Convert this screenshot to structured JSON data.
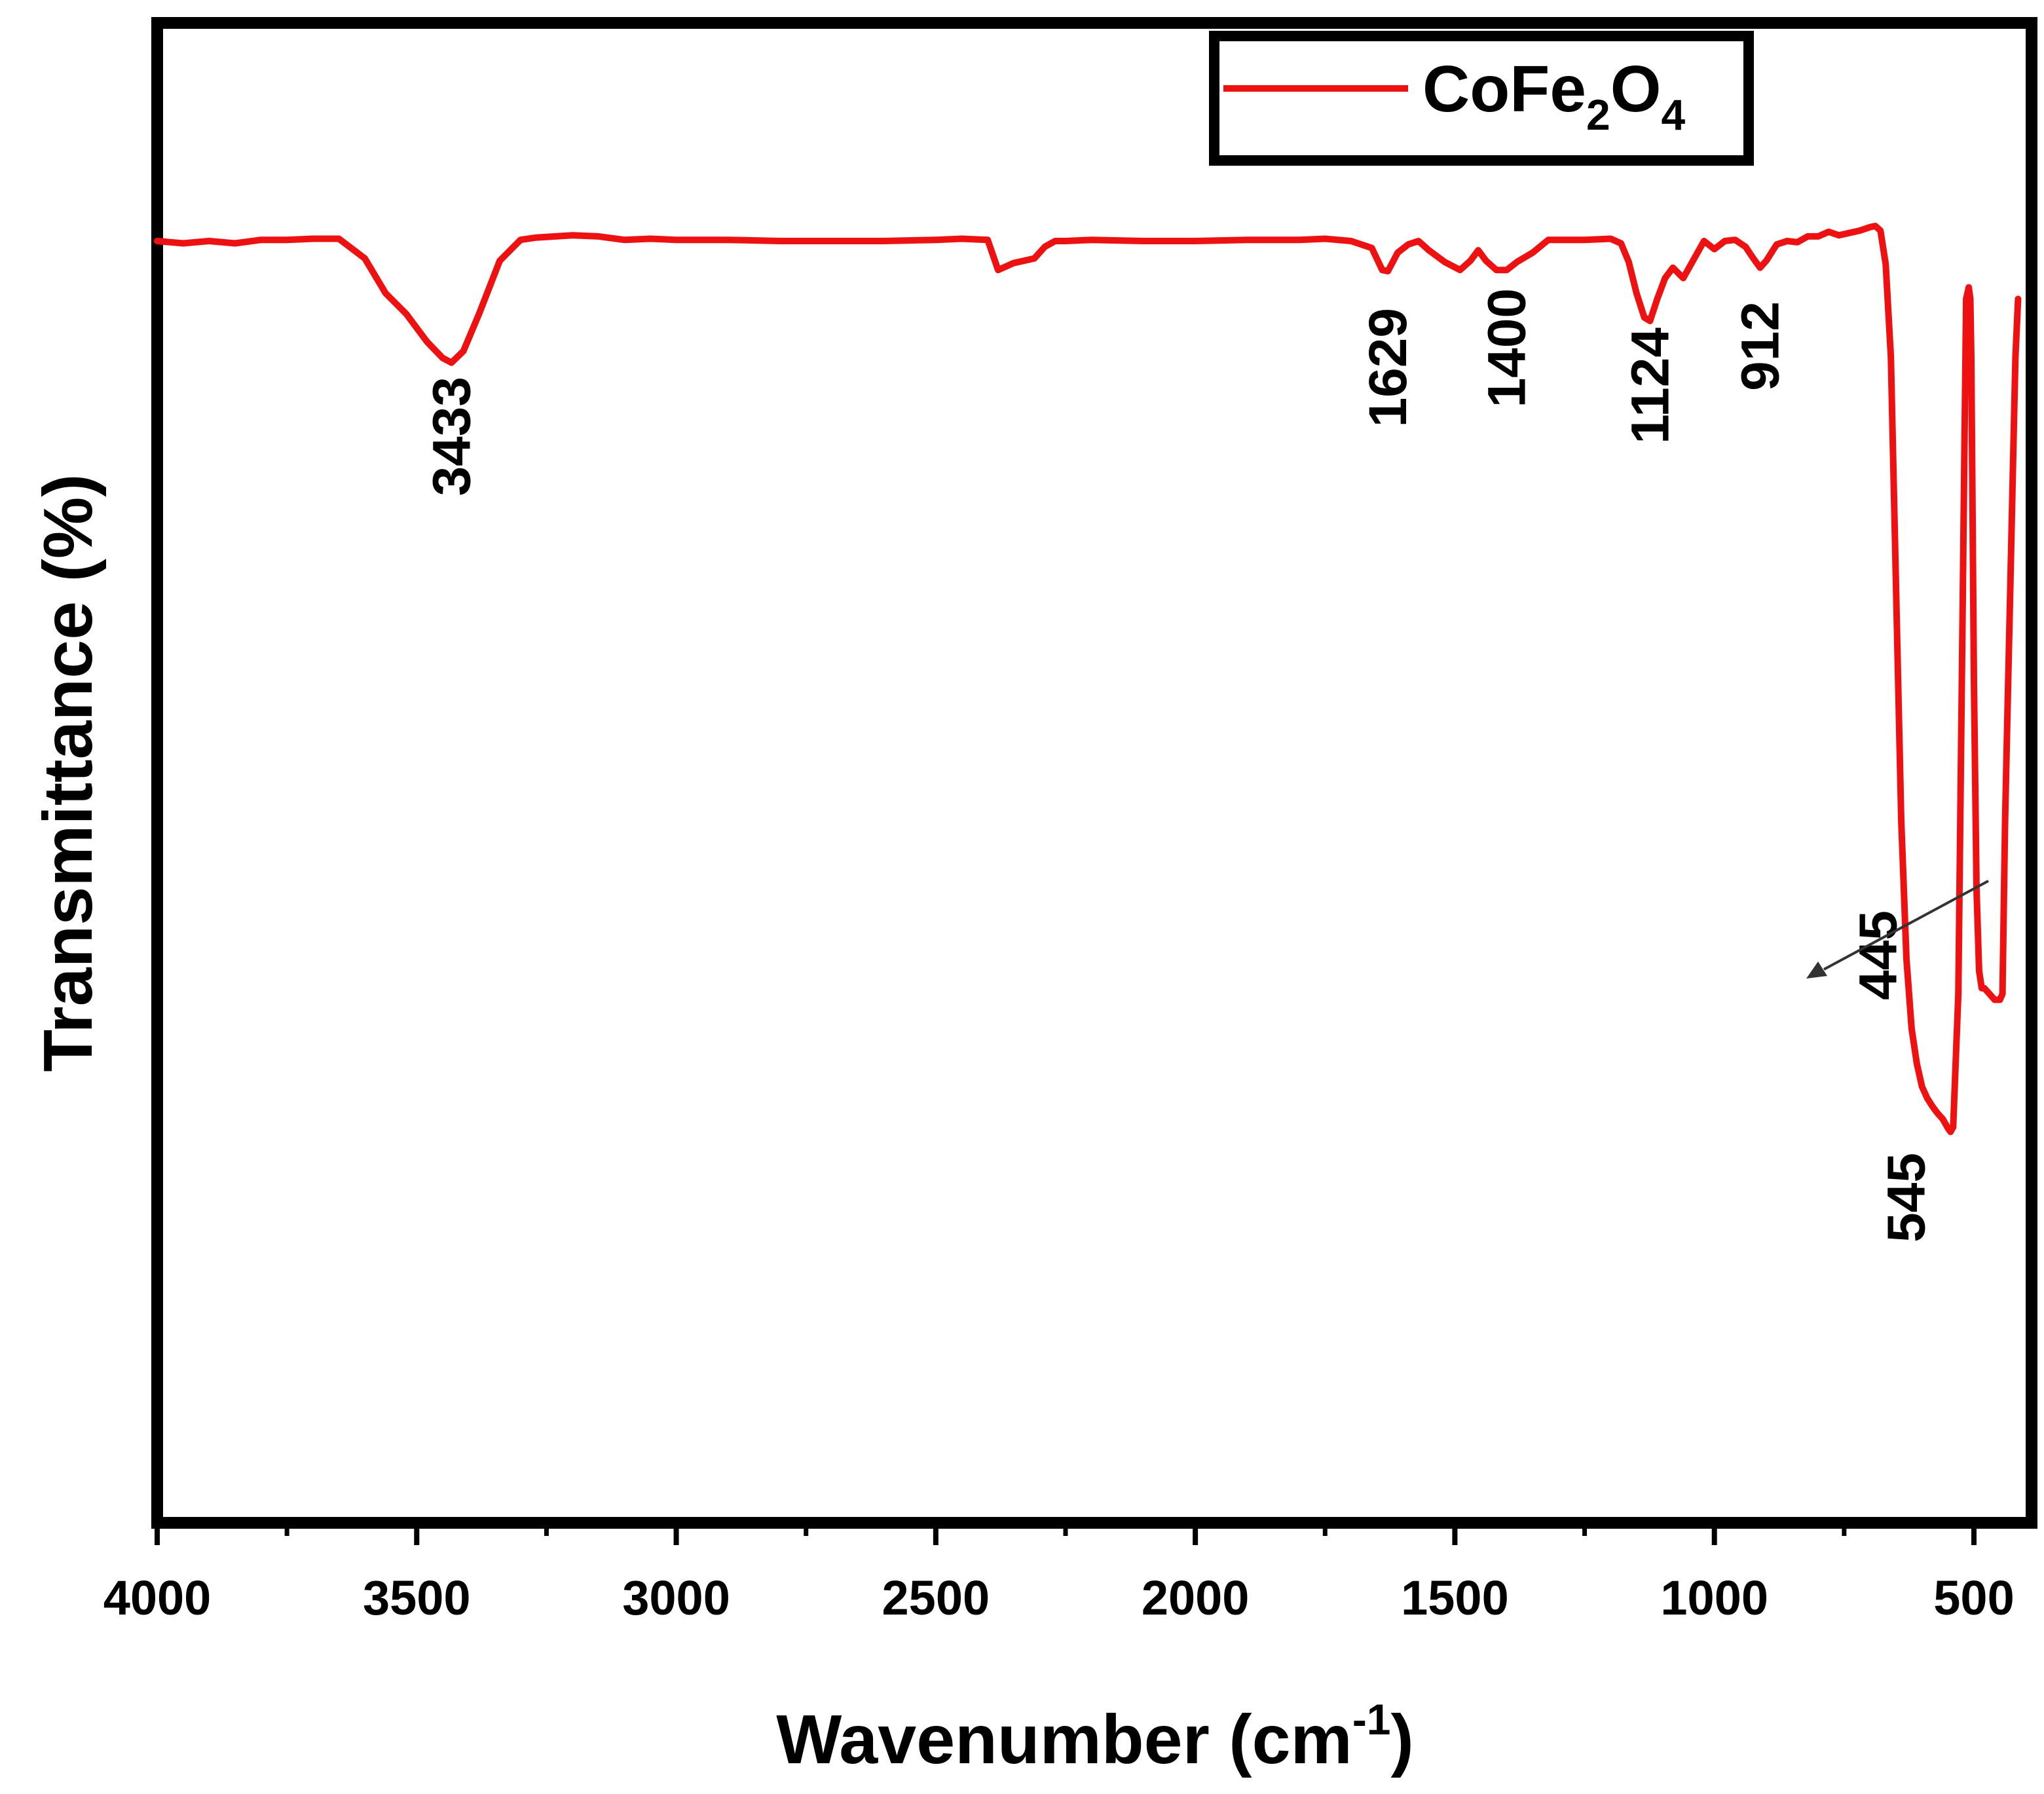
{
  "chart_data": {
    "type": "line",
    "title": "",
    "xlabel": "Wavenumber (cm",
    "xlabel_sup": "-1",
    "xlabel_end": ")",
    "ylabel": "Transmittance (%)",
    "xlim": [
      4000,
      400
    ],
    "ylim": [
      0,
      100
    ],
    "x_ticks": [
      {
        "value": 4000,
        "label": "4000"
      },
      {
        "value": 3500,
        "label": "3500"
      },
      {
        "value": 3000,
        "label": "3000"
      },
      {
        "value": 2500,
        "label": "2500"
      },
      {
        "value": 2000,
        "label": "2000"
      },
      {
        "value": 1500,
        "label": "1500"
      },
      {
        "value": 1000,
        "label": "1000"
      },
      {
        "value": 500,
        "label": "500"
      }
    ],
    "x_minor_step": 250,
    "legend": {
      "placement": "top-right",
      "entries": [
        {
          "label": "CoFe",
          "sub1": "2",
          "mid": "O",
          "sub2": "4",
          "color": "#ee1111"
        }
      ]
    },
    "series": [
      {
        "name": "CoFe2O4",
        "color": "#ee1111",
        "x": [
          4000,
          3950,
          3900,
          3850,
          3800,
          3750,
          3700,
          3650,
          3600,
          3560,
          3520,
          3480,
          3450,
          3433,
          3410,
          3380,
          3340,
          3300,
          3270,
          3200,
          3150,
          3100,
          3050,
          3000,
          2950,
          2900,
          2800,
          2700,
          2600,
          2500,
          2450,
          2400,
          2380,
          2365,
          2350,
          2330,
          2310,
          2290,
          2270,
          2250,
          2200,
          2100,
          2000,
          1900,
          1800,
          1750,
          1700,
          1660,
          1640,
          1629,
          1610,
          1590,
          1570,
          1550,
          1520,
          1490,
          1470,
          1455,
          1440,
          1420,
          1400,
          1380,
          1350,
          1320,
          1300,
          1250,
          1200,
          1180,
          1165,
          1150,
          1135,
          1124,
          1110,
          1095,
          1080,
          1060,
          1040,
          1020,
          1000,
          980,
          960,
          940,
          925,
          912,
          900,
          880,
          860,
          840,
          820,
          800,
          780,
          760,
          740,
          720,
          700,
          690,
          680,
          670,
          660,
          650,
          640,
          630,
          620,
          610,
          600,
          590,
          580,
          570,
          560,
          550,
          545,
          540,
          530,
          520,
          515,
          510,
          507,
          505,
          500,
          495,
          490,
          485,
          480,
          470,
          460,
          450,
          445,
          440,
          435,
          430,
          425,
          420,
          415
        ],
        "y": [
          100,
          99.8,
          100,
          99.8,
          100.1,
          100.1,
          100.2,
          100.2,
          98.5,
          95.5,
          93.7,
          91.3,
          89.9,
          89.5,
          90.5,
          93.7,
          98.3,
          100.1,
          100.3,
          100.5,
          100.4,
          100.1,
          100.2,
          100.1,
          100.1,
          100.1,
          100,
          100,
          100,
          100.1,
          100.2,
          100.1,
          97.5,
          97.8,
          98.1,
          98.3,
          98.5,
          99.5,
          100,
          100,
          100.1,
          100,
          100,
          100.1,
          100.1,
          100.2,
          100,
          99.4,
          97.5,
          97.4,
          99,
          99.7,
          100,
          99.2,
          98.2,
          97.5,
          98.3,
          99.2,
          98.3,
          97.5,
          97.5,
          98.2,
          99,
          100.1,
          100.1,
          100.1,
          100.2,
          99.8,
          98.2,
          95.5,
          93.4,
          93.1,
          95,
          96.8,
          97.7,
          96.8,
          98.4,
          100,
          99.3,
          100,
          100.1,
          99.5,
          98.5,
          97.7,
          98.3,
          99.7,
          100,
          99.9,
          100.4,
          100.4,
          100.8,
          100.5,
          100.7,
          100.9,
          101.2,
          101.3,
          100.9,
          98,
          90,
          70,
          50,
          38,
          32,
          29,
          27,
          26,
          25.3,
          24.7,
          24.2,
          23.4,
          23.1,
          23.5,
          35,
          75,
          95,
          96,
          95,
          90,
          62,
          44,
          37,
          35.5,
          35.5,
          35,
          34.5,
          34.5,
          35,
          50,
          60,
          70,
          80,
          90,
          95
        ]
      }
    ],
    "peak_labels": [
      {
        "value": 3433,
        "label": "3433",
        "y": 89.5
      },
      {
        "value": 1629,
        "label": "1629",
        "y": 97.4
      },
      {
        "value": 1400,
        "label": "1400",
        "y": 97.5
      },
      {
        "value": 1124,
        "label": "1124",
        "y": 93.1
      },
      {
        "value": 912,
        "label": "912",
        "y": 97.7
      },
      {
        "value": 545,
        "label": "545",
        "y": 23.1
      },
      {
        "value": 445,
        "label": "445",
        "y": 34.5
      }
    ]
  }
}
